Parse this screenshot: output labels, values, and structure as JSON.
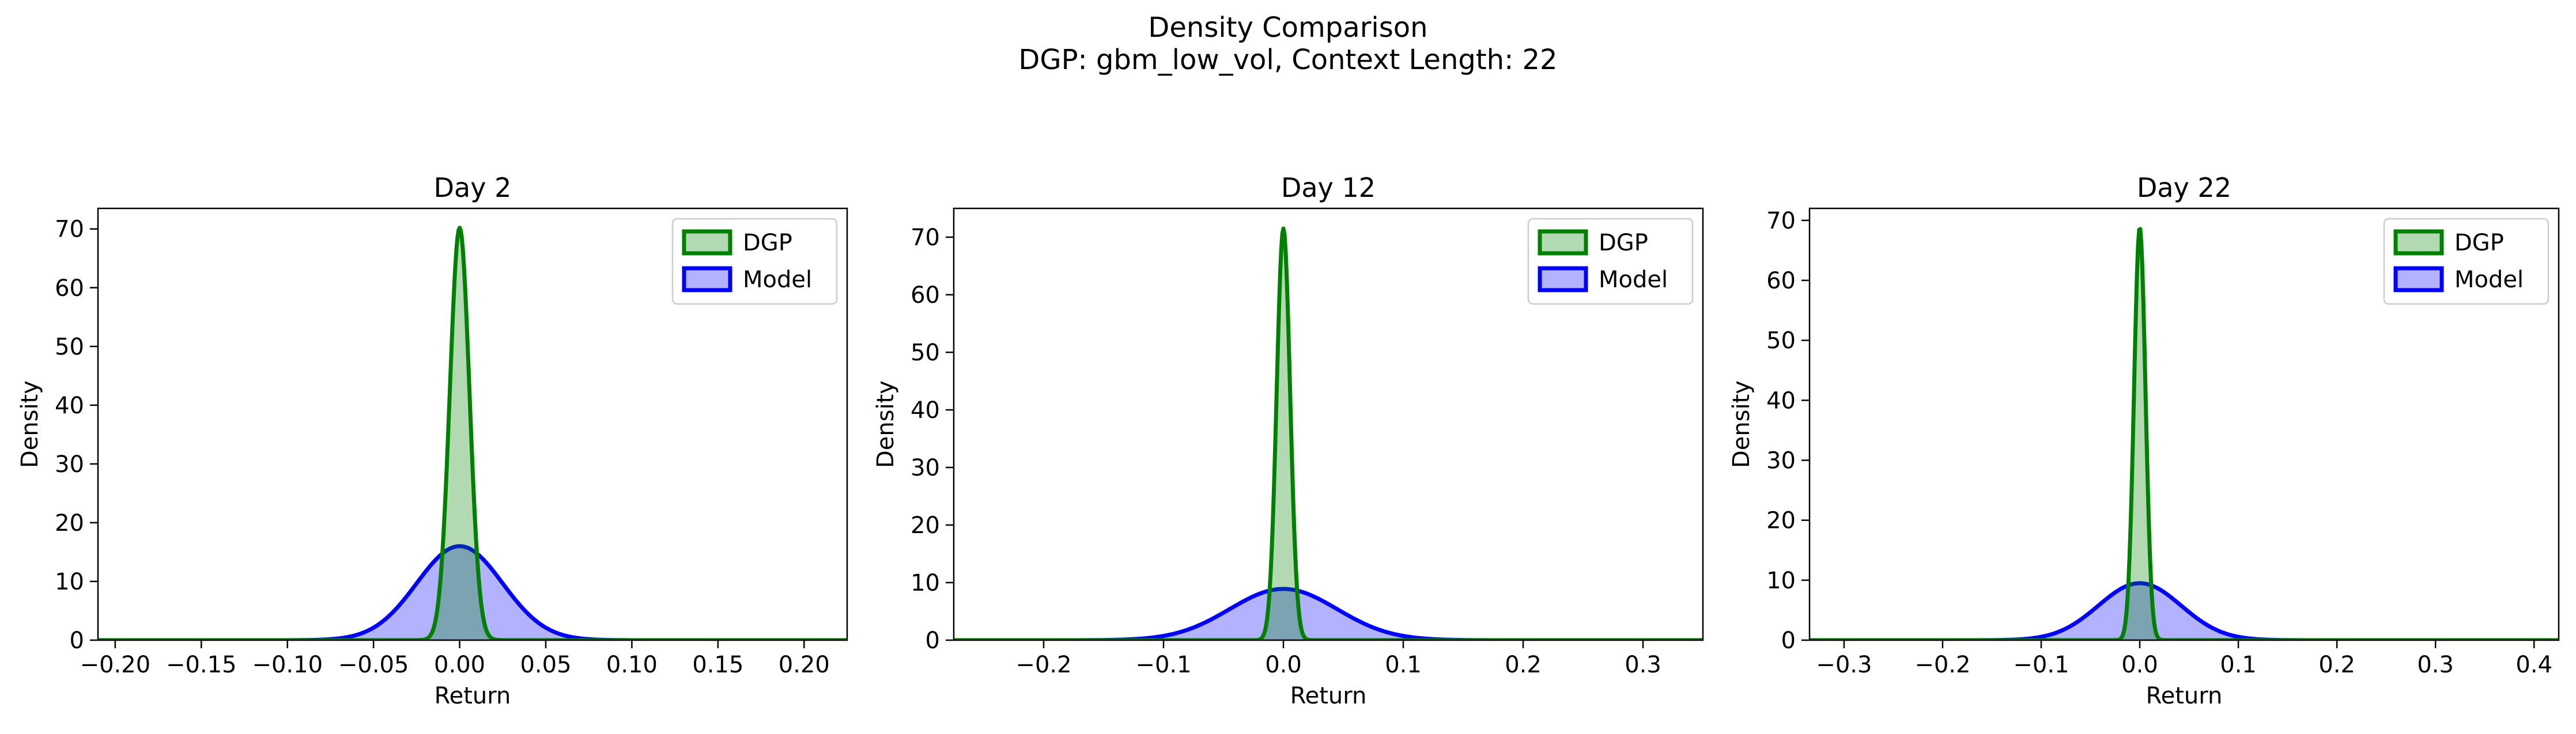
{
  "figure": {
    "suptitle_line1": "Density Comparison",
    "suptitle_line2": "DGP: gbm_low_vol, Context Length: 22"
  },
  "colors": {
    "dgp_line": "#008000",
    "dgp_fill": "#008000",
    "model_line": "#0000ff",
    "model_fill": "#0000ff"
  },
  "chart_data": [
    {
      "type": "area",
      "title": "Day 2",
      "xlabel": "Return",
      "ylabel": "Density",
      "xlim": [
        -0.21,
        0.225
      ],
      "ylim": [
        0,
        73.5
      ],
      "xticks": [
        -0.2,
        -0.15,
        -0.1,
        -0.05,
        0.0,
        0.05,
        0.1,
        0.15,
        0.2
      ],
      "xtick_labels": [
        "−0.20",
        "−0.15",
        "−0.10",
        "−0.05",
        "0.00",
        "0.05",
        "0.10",
        "0.15",
        "0.20"
      ],
      "yticks": [
        0,
        10,
        20,
        30,
        40,
        50,
        60,
        70
      ],
      "ytick_labels": [
        "0",
        "10",
        "20",
        "30",
        "40",
        "50",
        "60",
        "70"
      ],
      "legend_position": "top-right",
      "grid": false,
      "series": [
        {
          "name": "DGP",
          "kind": "normal",
          "mean": 0.0,
          "peak": 70.2,
          "sd": 0.00568
        },
        {
          "name": "Model",
          "kind": "normal",
          "mean": 0.0,
          "peak": 16.0,
          "sd": 0.0249
        }
      ]
    },
    {
      "type": "area",
      "title": "Day 12",
      "xlabel": "Return",
      "ylabel": "Density",
      "xlim": [
        -0.275,
        0.35
      ],
      "ylim": [
        0,
        75
      ],
      "xticks": [
        -0.2,
        -0.1,
        0.0,
        0.1,
        0.2,
        0.3
      ],
      "xtick_labels": [
        "−0.2",
        "−0.1",
        "0.0",
        "0.1",
        "0.2",
        "0.3"
      ],
      "yticks": [
        0,
        10,
        20,
        30,
        40,
        50,
        60,
        70
      ],
      "ytick_labels": [
        "0",
        "10",
        "20",
        "30",
        "40",
        "50",
        "60",
        "70"
      ],
      "legend_position": "top-right",
      "grid": false,
      "series": [
        {
          "name": "DGP",
          "kind": "normal",
          "mean": 0.0,
          "peak": 71.5,
          "sd": 0.00558
        },
        {
          "name": "Model",
          "kind": "normal",
          "mean": 0.0,
          "peak": 8.9,
          "sd": 0.0448
        }
      ]
    },
    {
      "type": "area",
      "title": "Day 22",
      "xlabel": "Return",
      "ylabel": "Density",
      "xlim": [
        -0.335,
        0.425
      ],
      "ylim": [
        0,
        72
      ],
      "xticks": [
        -0.3,
        -0.2,
        -0.1,
        0.0,
        0.1,
        0.2,
        0.3,
        0.4
      ],
      "xtick_labels": [
        "−0.3",
        "−0.2",
        "−0.1",
        "0.0",
        "0.1",
        "0.2",
        "0.3",
        "0.4"
      ],
      "yticks": [
        0,
        10,
        20,
        30,
        40,
        50,
        60,
        70
      ],
      "ytick_labels": [
        "0",
        "10",
        "20",
        "30",
        "40",
        "50",
        "60",
        "70"
      ],
      "legend_position": "top-right",
      "grid": false,
      "series": [
        {
          "name": "DGP",
          "kind": "normal",
          "mean": 0.0,
          "peak": 68.8,
          "sd": 0.0058
        },
        {
          "name": "Model",
          "kind": "normal",
          "mean": 0.0,
          "peak": 9.5,
          "sd": 0.042
        }
      ]
    }
  ]
}
